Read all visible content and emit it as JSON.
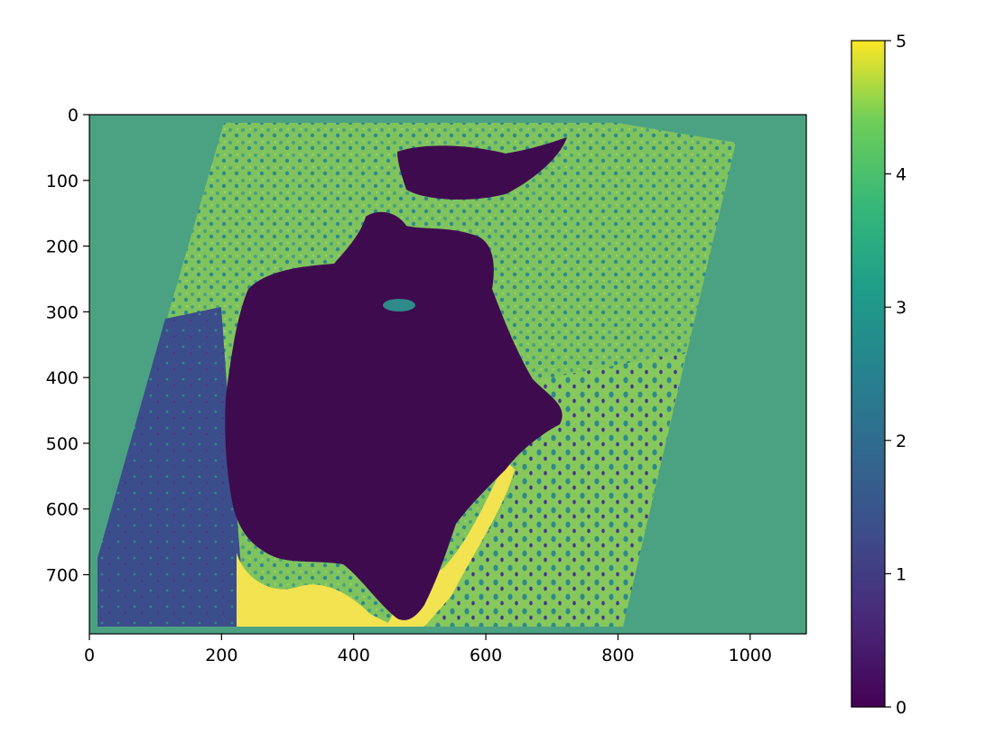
{
  "chart_data": {
    "type": "heatmap",
    "title": "",
    "xlabel": "",
    "ylabel": "",
    "xlim": [
      0,
      1085
    ],
    "ylim": [
      790,
      0
    ],
    "x_ticks": [
      0,
      200,
      400,
      600,
      800,
      1000
    ],
    "y_ticks": [
      0,
      100,
      200,
      300,
      400,
      500,
      600,
      700
    ],
    "colorbar": {
      "min": 0,
      "max": 5,
      "ticks": [
        0,
        1,
        2,
        3,
        4,
        5
      ],
      "colormap": "viridis"
    },
    "regions": [
      {
        "name": "background",
        "class_value": 3.2,
        "color": "#4ba282"
      },
      {
        "name": "lake",
        "class_value": 0,
        "color": "#3f0b4f"
      },
      {
        "name": "shoreline",
        "class_value": 5,
        "color": "#f3e350"
      },
      {
        "name": "northwest-land",
        "class_value": 4,
        "color": "#8cc95b"
      },
      {
        "name": "west-land",
        "class_value": 1,
        "color": "#3b4d8a"
      },
      {
        "name": "east-land",
        "class_value": 3.5,
        "color": "#62b371"
      }
    ]
  },
  "colors": {
    "background": "#4ba282",
    "lake": "#3f0b4f",
    "shoreline": "#f3e350",
    "green_light": "#8cc95b",
    "blue_dark": "#3b4d8a",
    "teal": "#2f8a8a"
  }
}
